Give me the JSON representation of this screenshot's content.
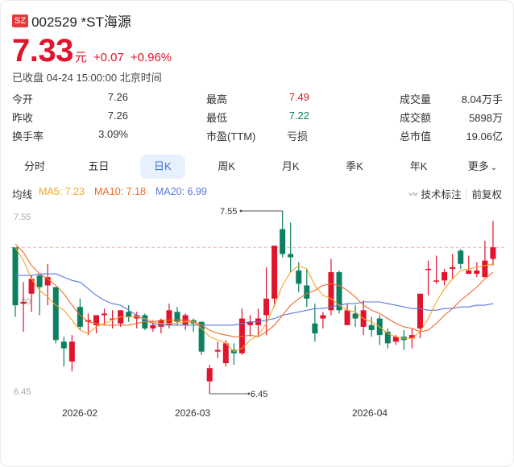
{
  "header": {
    "market_badge": "SZ",
    "title": "002529 *ST海源",
    "price": "7.33",
    "unit": "元",
    "change": "+0.07",
    "change_pct": "+0.96%",
    "status": "已收盘 04-24 15:00:00 北京时间"
  },
  "stats": {
    "col1": [
      {
        "label": "今开",
        "value": "7.26"
      },
      {
        "label": "昨收",
        "value": "7.26"
      },
      {
        "label": "换手率",
        "value": "3.09%"
      }
    ],
    "col2": [
      {
        "label": "最高",
        "value": "7.49"
      },
      {
        "label": "最低",
        "value": "7.22"
      },
      {
        "label": "市盈(TTM)",
        "value": "亏损"
      }
    ],
    "col3": [
      {
        "label": "成交量",
        "value": "8.04万手"
      },
      {
        "label": "成交额",
        "value": "5898万"
      },
      {
        "label": "总市值",
        "value": "19.06亿"
      }
    ]
  },
  "tabs": [
    {
      "label": "分时"
    },
    {
      "label": "五日"
    },
    {
      "label": "日K",
      "active": true
    },
    {
      "label": "周K"
    },
    {
      "label": "月K"
    },
    {
      "label": "季K"
    },
    {
      "label": "年K"
    },
    {
      "label": "更多"
    }
  ],
  "ma": {
    "label": "均线",
    "ma5": "MA5: 7.23",
    "ma10": "MA10: 7.18",
    "ma20": "MA20: 6.99",
    "tech_label": "技术标注",
    "adjust_label": "前复权"
  },
  "colors": {
    "up": "#e0142c",
    "down": "#0d8062",
    "ma5": "#f5a623",
    "ma10": "#f06a2a",
    "ma20": "#5a78e0",
    "accent": "#3b6fd6"
  },
  "chart_data": {
    "type": "candlestick",
    "title": "002529 *ST海源 日K",
    "y_ticks": [
      "7.55",
      "7.00",
      "6.45"
    ],
    "ylim": [
      6.45,
      7.55
    ],
    "x_ticks": [
      "2026-02",
      "2026-03",
      "2026-04"
    ],
    "annotations": [
      {
        "label": "7.55",
        "type": "max"
      },
      {
        "label": "6.45",
        "type": "min"
      }
    ],
    "current_price_line": 7.33,
    "legend": [
      "MA5: 7.23",
      "MA10: 7.18",
      "MA20: 6.99"
    ],
    "candles": [
      {
        "o": 7.33,
        "c": 6.98,
        "h": 7.33,
        "l": 6.91
      },
      {
        "o": 6.99,
        "c": 7.0,
        "h": 7.12,
        "l": 6.82
      },
      {
        "o": 7.05,
        "c": 7.14,
        "h": 7.16,
        "l": 6.94
      },
      {
        "o": 7.16,
        "c": 7.09,
        "h": 7.17,
        "l": 6.92
      },
      {
        "o": 7.1,
        "c": 7.15,
        "h": 7.23,
        "l": 6.98
      },
      {
        "o": 7.09,
        "c": 6.77,
        "h": 7.09,
        "l": 6.75
      },
      {
        "o": 6.76,
        "c": 6.72,
        "h": 6.79,
        "l": 6.61
      },
      {
        "o": 6.64,
        "c": 6.76,
        "h": 6.8,
        "l": 6.58
      },
      {
        "o": 6.97,
        "c": 6.85,
        "h": 7.02,
        "l": 6.83
      },
      {
        "o": 6.88,
        "c": 6.89,
        "h": 6.93,
        "l": 6.8
      },
      {
        "o": 6.86,
        "c": 6.92,
        "h": 6.92,
        "l": 6.81
      },
      {
        "o": 6.92,
        "c": 6.93,
        "h": 6.96,
        "l": 6.86
      },
      {
        "o": 6.9,
        "c": 6.9,
        "h": 6.95,
        "l": 6.84
      },
      {
        "o": 6.87,
        "c": 6.95,
        "h": 6.95,
        "l": 6.85
      },
      {
        "o": 6.94,
        "c": 6.91,
        "h": 6.98,
        "l": 6.88
      },
      {
        "o": 6.9,
        "c": 6.92,
        "h": 6.94,
        "l": 6.84
      },
      {
        "o": 6.92,
        "c": 6.84,
        "h": 6.93,
        "l": 6.83
      },
      {
        "o": 6.84,
        "c": 6.86,
        "h": 6.89,
        "l": 6.82
      },
      {
        "o": 6.85,
        "c": 6.89,
        "h": 6.9,
        "l": 6.81
      },
      {
        "o": 6.86,
        "c": 6.95,
        "h": 6.99,
        "l": 6.84
      },
      {
        "o": 6.94,
        "c": 6.88,
        "h": 6.97,
        "l": 6.86
      },
      {
        "o": 6.86,
        "c": 6.92,
        "h": 6.93,
        "l": 6.83
      },
      {
        "o": 6.89,
        "c": 6.87,
        "h": 6.9,
        "l": 6.82
      },
      {
        "o": 6.88,
        "c": 6.7,
        "h": 6.88,
        "l": 6.68
      },
      {
        "o": 6.52,
        "c": 6.6,
        "h": 6.62,
        "l": 6.45
      },
      {
        "o": 6.7,
        "c": 6.71,
        "h": 6.76,
        "l": 6.66
      },
      {
        "o": 6.63,
        "c": 6.75,
        "h": 6.77,
        "l": 6.61
      },
      {
        "o": 6.71,
        "c": 6.69,
        "h": 6.75,
        "l": 6.62
      },
      {
        "o": 6.69,
        "c": 6.9,
        "h": 6.96,
        "l": 6.68
      },
      {
        "o": 6.86,
        "c": 6.88,
        "h": 6.92,
        "l": 6.79
      },
      {
        "o": 6.86,
        "c": 6.9,
        "h": 6.96,
        "l": 6.79
      },
      {
        "o": 6.92,
        "c": 7.02,
        "h": 7.21,
        "l": 6.8
      },
      {
        "o": 7.02,
        "c": 7.34,
        "h": 7.34,
        "l": 6.97
      },
      {
        "o": 7.44,
        "c": 7.29,
        "h": 7.55,
        "l": 7.27
      },
      {
        "o": 7.29,
        "c": 7.27,
        "h": 7.48,
        "l": 7.18
      },
      {
        "o": 7.19,
        "c": 7.11,
        "h": 7.24,
        "l": 7.06
      },
      {
        "o": 7.1,
        "c": 7.02,
        "h": 7.2,
        "l": 6.97
      },
      {
        "o": 6.87,
        "c": 6.81,
        "h": 6.99,
        "l": 6.76
      },
      {
        "o": 6.9,
        "c": 6.92,
        "h": 6.94,
        "l": 6.84
      },
      {
        "o": 6.95,
        "c": 7.18,
        "h": 7.26,
        "l": 6.92
      },
      {
        "o": 7.18,
        "c": 6.95,
        "h": 7.19,
        "l": 6.93
      },
      {
        "o": 6.86,
        "c": 6.95,
        "h": 6.99,
        "l": 6.86
      },
      {
        "o": 6.93,
        "c": 6.9,
        "h": 6.98,
        "l": 6.85
      },
      {
        "o": 6.85,
        "c": 6.95,
        "h": 7.01,
        "l": 6.8
      },
      {
        "o": 6.86,
        "c": 6.83,
        "h": 6.91,
        "l": 6.79
      },
      {
        "o": 6.9,
        "c": 6.8,
        "h": 6.92,
        "l": 6.74
      },
      {
        "o": 6.82,
        "c": 6.75,
        "h": 6.84,
        "l": 6.72
      },
      {
        "o": 6.76,
        "c": 6.79,
        "h": 6.8,
        "l": 6.74
      },
      {
        "o": 6.79,
        "c": 6.77,
        "h": 6.83,
        "l": 6.71
      },
      {
        "o": 6.78,
        "c": 6.8,
        "h": 6.84,
        "l": 6.72
      },
      {
        "o": 6.84,
        "c": 7.05,
        "h": 7.05,
        "l": 6.78
      },
      {
        "o": 7.2,
        "c": 7.2,
        "h": 7.25,
        "l": 7.04
      },
      {
        "o": 7.13,
        "c": 7.13,
        "h": 7.28,
        "l": 7.11
      },
      {
        "o": 7.13,
        "c": 7.18,
        "h": 7.2,
        "l": 7.1
      },
      {
        "o": 7.2,
        "c": 7.21,
        "h": 7.29,
        "l": 7.14
      },
      {
        "o": 7.31,
        "c": 7.23,
        "h": 7.32,
        "l": 7.2
      },
      {
        "o": 7.17,
        "c": 7.19,
        "h": 7.28,
        "l": 7.17
      },
      {
        "o": 7.17,
        "c": 7.19,
        "h": 7.24,
        "l": 7.15
      },
      {
        "o": 7.15,
        "c": 7.25,
        "h": 7.37,
        "l": 7.15
      },
      {
        "o": 7.26,
        "c": 7.33,
        "h": 7.49,
        "l": 7.22
      }
    ],
    "ma5": [
      7.33,
      7.25,
      7.14,
      7.07,
      7.03,
      6.98,
      6.95,
      6.89,
      6.83,
      6.81,
      6.85,
      6.87,
      6.89,
      6.91,
      6.91,
      6.91,
      6.9,
      6.88,
      6.87,
      6.87,
      6.87,
      6.88,
      6.88,
      6.84,
      6.79,
      6.77,
      6.75,
      6.7,
      6.72,
      6.77,
      6.8,
      6.87,
      6.98,
      7.1,
      7.18,
      7.22,
      7.2,
      7.1,
      7.04,
      7.02,
      6.98,
      6.95,
      6.94,
      6.9,
      6.88,
      6.85,
      6.81,
      6.79,
      6.78,
      6.78,
      6.82,
      6.9,
      7.0,
      7.08,
      7.14,
      7.19,
      7.2,
      7.21,
      7.22,
      7.23
    ],
    "ma10": [
      7.35,
      7.3,
      7.22,
      7.17,
      7.14,
      7.1,
      7.05,
      6.98,
      6.92,
      6.88,
      6.87,
      6.86,
      6.86,
      6.86,
      6.86,
      6.87,
      6.88,
      6.88,
      6.89,
      6.89,
      6.89,
      6.89,
      6.88,
      6.86,
      6.83,
      6.81,
      6.8,
      6.79,
      6.79,
      6.8,
      6.79,
      6.82,
      6.86,
      6.92,
      6.98,
      7.02,
      7.05,
      7.07,
      7.1,
      7.11,
      7.1,
      7.07,
      7.03,
      6.98,
      6.95,
      6.93,
      6.9,
      6.87,
      6.85,
      6.84,
      6.82,
      6.83,
      6.87,
      6.92,
      6.96,
      7.01,
      7.05,
      7.09,
      7.14,
      7.18
    ],
    "ma20": [
      7.16,
      7.16,
      7.16,
      7.17,
      7.17,
      7.17,
      7.15,
      7.13,
      7.12,
      7.08,
      7.04,
      7.01,
      6.99,
      6.98,
      6.95,
      6.92,
      6.89,
      6.87,
      6.86,
      6.86,
      6.86,
      6.86,
      6.86,
      6.86,
      6.86,
      6.86,
      6.86,
      6.86,
      6.87,
      6.88,
      6.88,
      6.89,
      6.9,
      6.92,
      6.93,
      6.94,
      6.95,
      6.96,
      6.96,
      6.97,
      6.98,
      6.99,
      6.99,
      7.0,
      7.0,
      7.0,
      6.99,
      6.98,
      6.97,
      6.96,
      6.96,
      6.95,
      6.95,
      6.96,
      6.96,
      6.97,
      6.97,
      6.98,
      6.98,
      6.99
    ]
  }
}
